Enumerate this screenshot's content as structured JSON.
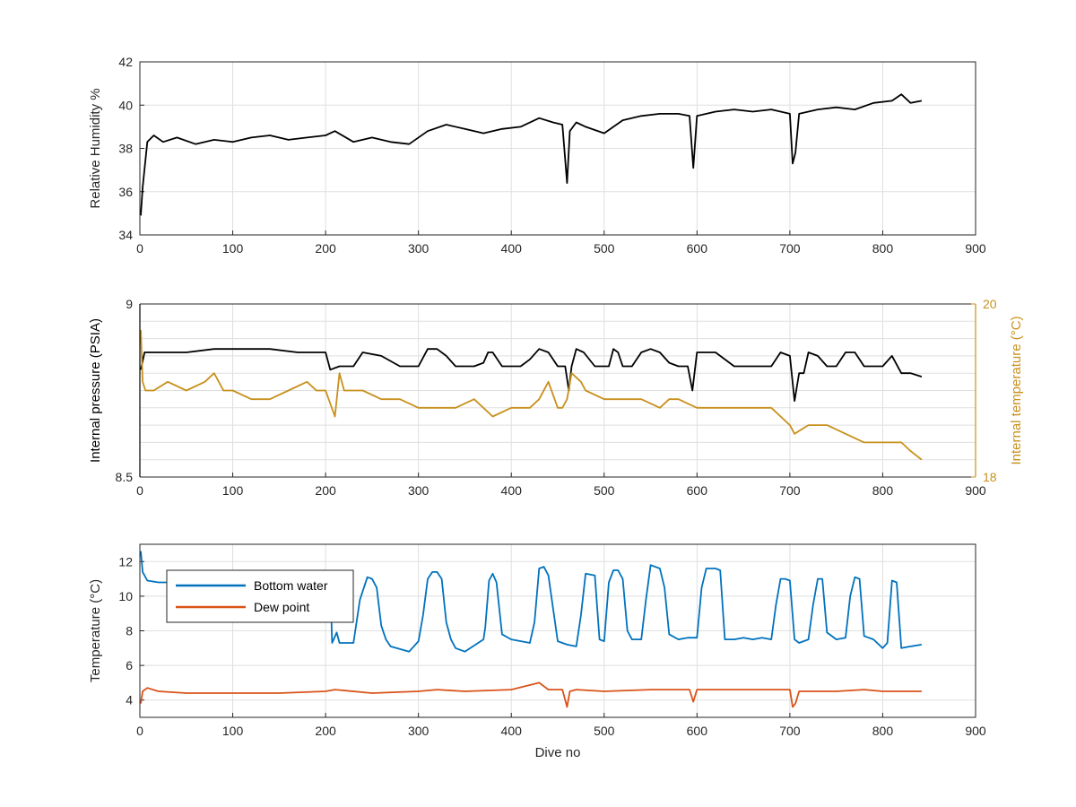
{
  "chart_data": [
    {
      "type": "line",
      "xlabel": "",
      "ylabel": "Relative Humidity %",
      "xlim": [
        0,
        900
      ],
      "ylim": [
        34,
        42
      ],
      "xticks": [
        "0",
        "100",
        "200",
        "300",
        "400",
        "500",
        "600",
        "700",
        "800",
        "900"
      ],
      "yticks": [
        "34",
        "36",
        "38",
        "40",
        "42"
      ],
      "grid": true,
      "series": [
        {
          "color": "#000000",
          "x": [
            1,
            3,
            8,
            15,
            25,
            40,
            60,
            80,
            100,
            120,
            140,
            160,
            180,
            200,
            210,
            230,
            250,
            270,
            290,
            310,
            330,
            350,
            370,
            390,
            410,
            430,
            445,
            455,
            460,
            463,
            470,
            480,
            500,
            520,
            540,
            560,
            580,
            592,
            596,
            600,
            620,
            640,
            660,
            680,
            700,
            703,
            706,
            710,
            730,
            750,
            770,
            790,
            810,
            820,
            830,
            842
          ],
          "y": [
            34.9,
            36.2,
            38.3,
            38.6,
            38.3,
            38.5,
            38.2,
            38.4,
            38.3,
            38.5,
            38.6,
            38.4,
            38.5,
            38.6,
            38.8,
            38.3,
            38.5,
            38.3,
            38.2,
            38.8,
            39.1,
            38.9,
            38.7,
            38.9,
            39.0,
            39.4,
            39.2,
            39.1,
            36.4,
            38.8,
            39.2,
            39.0,
            38.7,
            39.3,
            39.5,
            39.6,
            39.6,
            39.5,
            37.1,
            39.5,
            39.7,
            39.8,
            39.7,
            39.8,
            39.6,
            37.3,
            37.8,
            39.6,
            39.8,
            39.9,
            39.8,
            40.1,
            40.2,
            40.5,
            40.1,
            40.2
          ]
        }
      ]
    },
    {
      "type": "line",
      "xlabel": "",
      "ylabel": "Internal pressure (PSIA)",
      "y2label": "Internal temperature (°C)",
      "xlim": [
        0,
        900
      ],
      "ylim": [
        8.5,
        9
      ],
      "y2lim": [
        18,
        20
      ],
      "xticks": [
        "0",
        "100",
        "200",
        "300",
        "400",
        "500",
        "600",
        "700",
        "800",
        "900"
      ],
      "yticks": [
        "8.5",
        "9"
      ],
      "y2ticks": [
        "18",
        "20"
      ],
      "grid": true,
      "series": [
        {
          "axis": "left",
          "color": "#000000",
          "x": [
            1,
            5,
            20,
            50,
            80,
            110,
            140,
            170,
            200,
            205,
            215,
            230,
            240,
            260,
            280,
            300,
            310,
            320,
            330,
            340,
            360,
            370,
            375,
            380,
            390,
            410,
            420,
            430,
            440,
            450,
            458,
            462,
            465,
            470,
            478,
            490,
            500,
            505,
            510,
            515,
            520,
            530,
            540,
            550,
            560,
            570,
            580,
            590,
            595,
            600,
            605,
            620,
            640,
            660,
            680,
            690,
            700,
            705,
            710,
            715,
            720,
            730,
            740,
            750,
            760,
            770,
            780,
            790,
            800,
            810,
            820,
            830,
            842
          ],
          "y": [
            8.81,
            8.86,
            8.86,
            8.86,
            8.87,
            8.87,
            8.87,
            8.86,
            8.86,
            8.81,
            8.82,
            8.82,
            8.86,
            8.85,
            8.82,
            8.82,
            8.87,
            8.87,
            8.85,
            8.82,
            8.82,
            8.83,
            8.86,
            8.86,
            8.82,
            8.82,
            8.84,
            8.87,
            8.86,
            8.82,
            8.82,
            8.75,
            8.82,
            8.87,
            8.86,
            8.82,
            8.82,
            8.82,
            8.87,
            8.86,
            8.82,
            8.82,
            8.86,
            8.87,
            8.86,
            8.83,
            8.82,
            8.82,
            8.75,
            8.86,
            8.86,
            8.86,
            8.82,
            8.82,
            8.82,
            8.86,
            8.85,
            8.72,
            8.8,
            8.8,
            8.86,
            8.85,
            8.82,
            8.82,
            8.86,
            8.86,
            8.82,
            8.82,
            8.82,
            8.85,
            8.8,
            8.8,
            8.79
          ]
        },
        {
          "axis": "right",
          "color": "#c8901c",
          "x": [
            1,
            3,
            6,
            15,
            30,
            50,
            70,
            80,
            90,
            100,
            120,
            140,
            160,
            180,
            190,
            200,
            210,
            215,
            220,
            240,
            260,
            280,
            300,
            320,
            340,
            360,
            380,
            400,
            420,
            430,
            440,
            450,
            455,
            460,
            465,
            475,
            480,
            500,
            520,
            540,
            560,
            570,
            580,
            600,
            620,
            640,
            660,
            680,
            700,
            705,
            720,
            740,
            760,
            780,
            800,
            820,
            830,
            842
          ],
          "y": [
            19.7,
            19.1,
            19.0,
            19.0,
            19.1,
            19.0,
            19.1,
            19.2,
            19.0,
            19.0,
            18.9,
            18.9,
            19.0,
            19.1,
            19.0,
            19.0,
            18.7,
            19.2,
            19.0,
            19.0,
            18.9,
            18.9,
            18.8,
            18.8,
            18.8,
            18.9,
            18.7,
            18.8,
            18.8,
            18.9,
            19.1,
            18.8,
            18.8,
            18.9,
            19.2,
            19.1,
            19.0,
            18.9,
            18.9,
            18.9,
            18.8,
            18.9,
            18.9,
            18.8,
            18.8,
            18.8,
            18.8,
            18.8,
            18.6,
            18.5,
            18.6,
            18.6,
            18.5,
            18.4,
            18.4,
            18.4,
            18.3,
            18.2
          ]
        }
      ]
    },
    {
      "type": "line",
      "xlabel": "Dive no",
      "ylabel": "Temperature (°C)",
      "xlim": [
        0,
        900
      ],
      "ylim": [
        3,
        13
      ],
      "xticks": [
        "0",
        "100",
        "200",
        "300",
        "400",
        "500",
        "600",
        "700",
        "800",
        "900"
      ],
      "yticks": [
        "4",
        "6",
        "8",
        "10",
        "12"
      ],
      "grid": true,
      "legend": "top-left",
      "series": [
        {
          "name": "Bottom water",
          "color": "#0072bd",
          "x": [
            1,
            3,
            8,
            20,
            50,
            100,
            150,
            200,
            205,
            207,
            212,
            215,
            230,
            237,
            245,
            250,
            255,
            260,
            265,
            270,
            290,
            300,
            305,
            310,
            315,
            320,
            325,
            330,
            335,
            340,
            350,
            370,
            372,
            376,
            380,
            384,
            390,
            400,
            420,
            425,
            430,
            435,
            440,
            450,
            460,
            470,
            475,
            480,
            490,
            495,
            500,
            505,
            510,
            515,
            520,
            525,
            530,
            540,
            545,
            550,
            560,
            565,
            570,
            580,
            590,
            600,
            605,
            610,
            620,
            625,
            630,
            640,
            650,
            660,
            670,
            680,
            685,
            690,
            695,
            700,
            705,
            710,
            720,
            725,
            730,
            735,
            740,
            750,
            760,
            765,
            770,
            775,
            780,
            790,
            800,
            805,
            810,
            815,
            820,
            830,
            842
          ],
          "y": [
            12.6,
            11.4,
            10.9,
            10.8,
            10.8,
            10.8,
            10.8,
            10.8,
            10.8,
            7.3,
            7.9,
            7.3,
            7.3,
            9.8,
            11.1,
            11.0,
            10.5,
            8.3,
            7.5,
            7.1,
            6.8,
            7.4,
            8.9,
            11.0,
            11.4,
            11.4,
            11.0,
            8.5,
            7.5,
            7.0,
            6.8,
            7.5,
            8.2,
            10.9,
            11.3,
            10.8,
            7.8,
            7.5,
            7.3,
            8.5,
            11.6,
            11.7,
            11.2,
            7.4,
            7.2,
            7.1,
            8.9,
            11.3,
            11.2,
            7.5,
            7.4,
            10.8,
            11.5,
            11.5,
            11.0,
            8.0,
            7.5,
            7.5,
            9.8,
            11.8,
            11.6,
            10.5,
            7.8,
            7.5,
            7.6,
            7.6,
            10.5,
            11.6,
            11.6,
            11.5,
            7.5,
            7.5,
            7.6,
            7.5,
            7.6,
            7.5,
            9.5,
            11.0,
            11.0,
            10.9,
            7.5,
            7.3,
            7.5,
            9.5,
            11.0,
            11.0,
            7.9,
            7.5,
            7.6,
            10.0,
            11.1,
            11.0,
            7.7,
            7.5,
            7.0,
            7.3,
            10.9,
            10.8,
            7.0,
            7.1,
            7.2
          ]
        },
        {
          "name": "Dew point",
          "color": "#d95319",
          "x": [
            1,
            3,
            8,
            20,
            50,
            100,
            150,
            200,
            210,
            250,
            300,
            320,
            350,
            400,
            430,
            440,
            455,
            460,
            463,
            470,
            500,
            550,
            592,
            596,
            600,
            650,
            700,
            703,
            706,
            710,
            750,
            780,
            800,
            842
          ],
          "y": [
            3.8,
            4.5,
            4.7,
            4.5,
            4.4,
            4.4,
            4.4,
            4.5,
            4.6,
            4.4,
            4.5,
            4.6,
            4.5,
            4.6,
            5.0,
            4.6,
            4.6,
            3.6,
            4.5,
            4.6,
            4.5,
            4.6,
            4.6,
            3.9,
            4.6,
            4.6,
            4.6,
            3.6,
            3.8,
            4.5,
            4.5,
            4.6,
            4.5,
            4.5
          ]
        }
      ]
    }
  ]
}
